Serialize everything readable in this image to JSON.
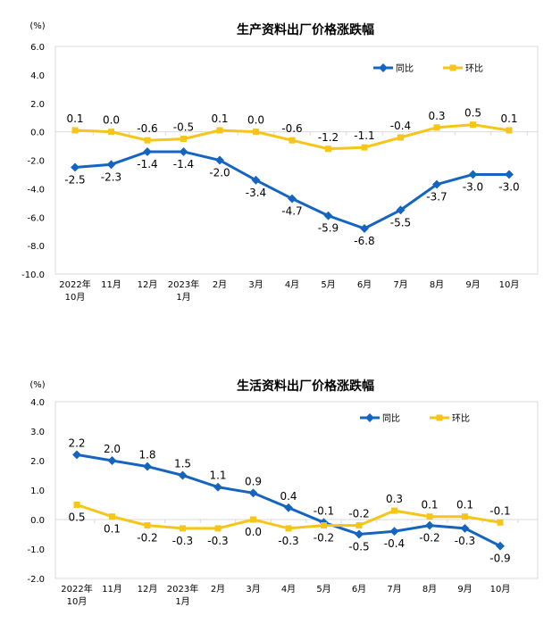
{
  "chart_data": [
    {
      "type": "line",
      "title": "生产资料出厂价格涨跌幅",
      "ylabel": "(%)",
      "ylim": [
        -10,
        6
      ],
      "yticks": [
        "6.0",
        "4.0",
        "2.0",
        "0.0",
        "-2.0",
        "-4.0",
        "-6.0",
        "-8.0",
        "-10.0"
      ],
      "categories": [
        "2022年\n10月",
        "11月",
        "12月",
        "2023年\n1月",
        "2月",
        "3月",
        "4月",
        "5月",
        "6月",
        "7月",
        "8月",
        "9月",
        "10月"
      ],
      "legend_position": "top-right",
      "grid": false,
      "series": [
        {
          "name": "同比",
          "color": "#1565C0",
          "values": [
            -2.5,
            -2.3,
            -1.4,
            -1.4,
            -2.0,
            -3.4,
            -4.7,
            -5.9,
            -6.8,
            -5.5,
            -3.7,
            -3.0,
            -3.0
          ]
        },
        {
          "name": "环比",
          "color": "#F5C518",
          "values": [
            0.1,
            0.0,
            -0.6,
            -0.5,
            0.1,
            0.0,
            -0.6,
            -1.2,
            -1.1,
            -0.4,
            0.3,
            0.5,
            0.1
          ]
        }
      ]
    },
    {
      "type": "line",
      "title": "生活资料出厂价格涨跌幅",
      "ylabel": "(%)",
      "ylim": [
        -2,
        4
      ],
      "yticks": [
        "4.0",
        "3.0",
        "2.0",
        "1.0",
        "0.0",
        "-1.0",
        "-2.0"
      ],
      "categories": [
        "2022年\n10月",
        "11月",
        "12月",
        "2023年\n1月",
        "2月",
        "3月",
        "4月",
        "5月",
        "6月",
        "7月",
        "8月",
        "9月",
        "10月"
      ],
      "legend_position": "top-right",
      "grid": false,
      "series": [
        {
          "name": "同比",
          "color": "#1565C0",
          "values": [
            2.2,
            2.0,
            1.8,
            1.5,
            1.1,
            0.9,
            0.4,
            -0.1,
            -0.5,
            -0.4,
            -0.2,
            -0.3,
            -0.9
          ]
        },
        {
          "name": "环比",
          "color": "#F5C518",
          "values": [
            0.5,
            0.1,
            -0.2,
            -0.3,
            -0.3,
            0.0,
            -0.3,
            -0.2,
            -0.2,
            0.3,
            0.1,
            0.1,
            -0.1
          ]
        }
      ]
    }
  ]
}
